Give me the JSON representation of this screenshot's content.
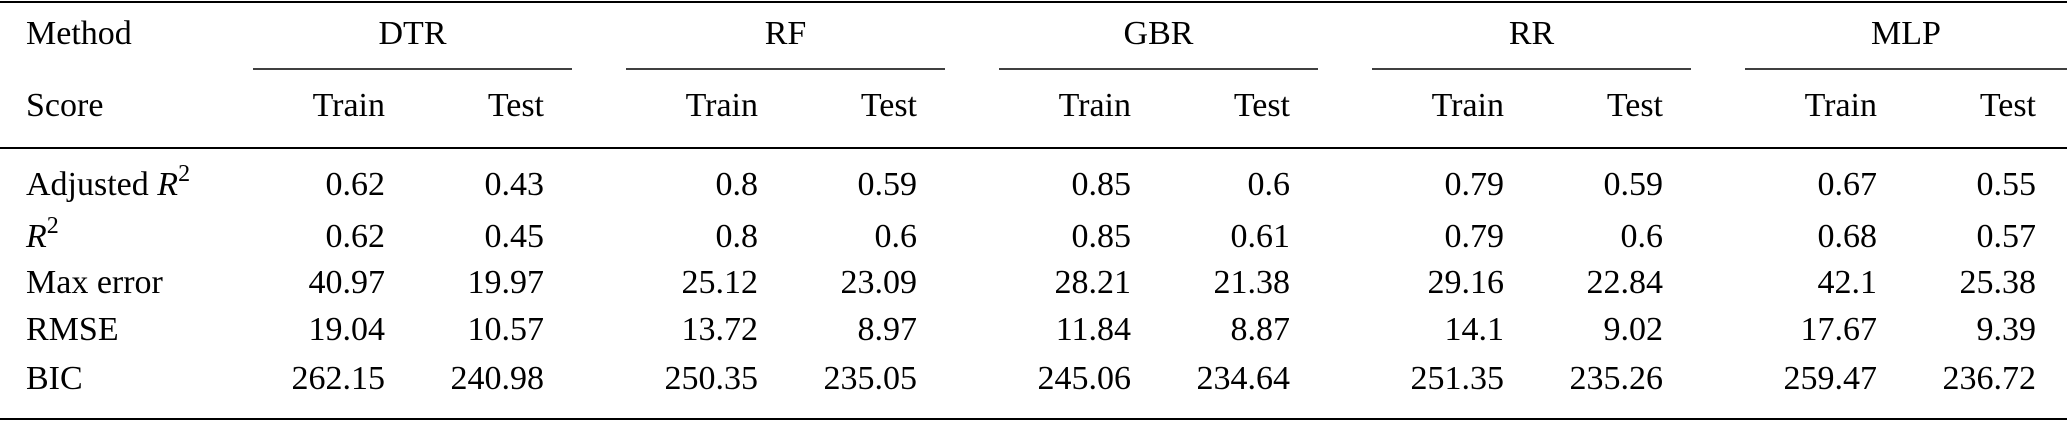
{
  "header": {
    "method": "Method",
    "score": "Score",
    "groups": [
      {
        "name": "DTR",
        "cols": [
          "Train",
          "Test"
        ]
      },
      {
        "name": "RF",
        "cols": [
          "Train",
          "Test"
        ]
      },
      {
        "name": "GBR",
        "cols": [
          "Train",
          "Test"
        ]
      },
      {
        "name": "RR",
        "cols": [
          "Train",
          "Test"
        ]
      },
      {
        "name": "MLP",
        "cols": [
          "Train",
          "Test"
        ]
      }
    ]
  },
  "rows": [
    {
      "label": {
        "prefix": "Adjusted ",
        "var": "R",
        "sup": "2"
      },
      "values": [
        0.62,
        0.43,
        0.8,
        0.59,
        0.85,
        0.6,
        0.79,
        0.59,
        0.67,
        0.55
      ]
    },
    {
      "label": {
        "var": "R",
        "sup": "2"
      },
      "values": [
        0.62,
        0.45,
        0.8,
        0.6,
        0.85,
        0.61,
        0.79,
        0.6,
        0.68,
        0.57
      ]
    },
    {
      "label": {
        "text": "Max error"
      },
      "values": [
        40.97,
        19.97,
        25.12,
        23.09,
        28.21,
        21.38,
        29.16,
        22.84,
        42.1,
        25.38
      ]
    },
    {
      "label": {
        "text": "RMSE"
      },
      "values": [
        19.04,
        10.57,
        13.72,
        8.97,
        11.84,
        8.87,
        14.1,
        9.02,
        17.67,
        9.39
      ]
    },
    {
      "label": {
        "text": "BIC"
      },
      "values": [
        262.15,
        240.98,
        250.35,
        235.05,
        245.06,
        234.64,
        251.35,
        235.26,
        259.47,
        236.72
      ]
    }
  ]
}
